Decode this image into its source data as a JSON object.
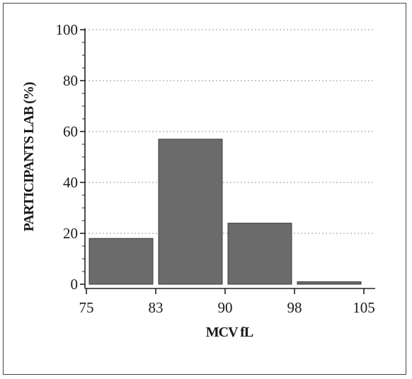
{
  "colors": {
    "bar_fill": "#6b6b6b",
    "bar_stroke": "#3c3c3c",
    "axis": "#222222",
    "grid": "#9a9a9a",
    "frame": "#444444",
    "background": "#ffffff"
  },
  "chart_data": {
    "type": "bar",
    "title": "",
    "xlabel": "MCV fL",
    "ylabel": "PARTICIPANTS LAB (%)",
    "x_ticks": [
      "75",
      "83",
      "90",
      "98",
      "105"
    ],
    "y_ticks": [
      "0",
      "20",
      "40",
      "60",
      "80",
      "100"
    ],
    "bins": [
      {
        "from": 75,
        "to": 83,
        "value": 18
      },
      {
        "from": 83,
        "to": 90,
        "value": 57
      },
      {
        "from": 90,
        "to": 98,
        "value": 24
      },
      {
        "from": 98,
        "to": 105,
        "value": 1
      }
    ],
    "xlim": [
      75,
      105
    ],
    "ylim": [
      0,
      100
    ],
    "grid": "horizontal dotted",
    "legend": "none"
  }
}
